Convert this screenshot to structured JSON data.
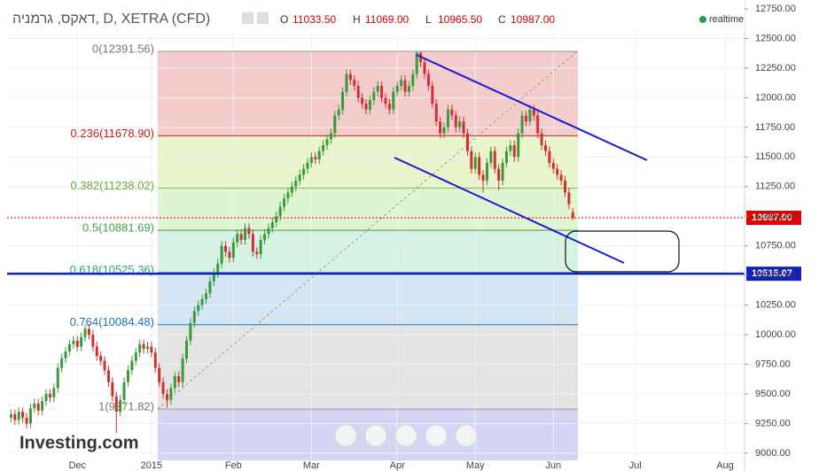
{
  "chart_data": {
    "type": "candlestick",
    "title": "דאקס, גרמניה, D, XETRA (CFD)",
    "ohlc": [
      [
        "O",
        "11033.50"
      ],
      [
        "H",
        "11069.00"
      ],
      [
        "L",
        "10965.50"
      ],
      [
        "C",
        "10987.00"
      ]
    ],
    "status": "realtime",
    "brand": "Investing.com",
    "up_color": "#3a9a3a",
    "down_color": "#d03030",
    "grid": true,
    "xlim": [
      -1,
      188
    ],
    "xticks": [
      {
        "value": 17,
        "label": "Dec"
      },
      {
        "value": 36,
        "label": "2015"
      },
      {
        "value": 57,
        "label": "Feb"
      },
      {
        "value": 77,
        "label": "Mar"
      },
      {
        "value": 99,
        "label": "Apr"
      },
      {
        "value": 119,
        "label": "May"
      },
      {
        "value": 139,
        "label": "Jun"
      },
      {
        "value": 160,
        "label": "Jul"
      },
      {
        "value": 183,
        "label": "Aug"
      }
    ],
    "ylim": [
      8850,
      12825
    ],
    "yticks": [
      {
        "value": 9000,
        "label": "9000.00"
      },
      {
        "value": 9250,
        "label": "9250.00"
      },
      {
        "value": 9500,
        "label": "9500.00"
      },
      {
        "value": 9750,
        "label": "9750.00"
      },
      {
        "value": 10000,
        "label": "10000.00"
      },
      {
        "value": 10250,
        "label": "10250.00"
      },
      {
        "value": 10500,
        "label": "10500.00"
      },
      {
        "value": 10750,
        "label": "10750.00"
      },
      {
        "value": 11000,
        "label": "11000.00"
      },
      {
        "value": 11250,
        "label": "11250.00"
      },
      {
        "value": 11500,
        "label": "11500.00"
      },
      {
        "value": 11750,
        "label": "11750.00"
      },
      {
        "value": 12000,
        "label": "12000.00"
      },
      {
        "value": 12250,
        "label": "12250.00"
      },
      {
        "value": 12500,
        "label": "12500.00"
      },
      {
        "value": 12750,
        "label": "12750.00"
      }
    ],
    "fib_levels": [
      {
        "value": 12391.56,
        "label": "0(12391.56)",
        "color": "#999999",
        "text_color": "#777777",
        "fill": "#f4cccc"
      },
      {
        "value": 11678.9,
        "label": "0.236(11678.90)",
        "color": "#c02020",
        "text_color": "#c02020",
        "fill": "#eaf4cc"
      },
      {
        "value": 11238.02,
        "label": "0.382(11238.02)",
        "color": "#7cc040",
        "text_color": "#6aaa30",
        "fill": "#dff4d0"
      },
      {
        "value": 10881.69,
        "label": "0.5(10881.69)",
        "color": "#40a040",
        "text_color": "#40a040",
        "fill": "#d6f2e4"
      },
      {
        "value": 10525.36,
        "label": "0.618(10525.36)",
        "color": "#30a090",
        "text_color": "#30a090",
        "fill": "#d4e6f4"
      },
      {
        "value": 10084.48,
        "label": "0.764(10084.48)",
        "color": "#2070c0",
        "text_color": "#2070c0",
        "fill": "#e4e4e4"
      },
      {
        "value": 9371.82,
        "label": "1(9371.82)",
        "color": "#999999",
        "text_color": "#777777",
        "fill": "#d4d4f4"
      }
    ],
    "price_lines": [
      {
        "value": 10987,
        "label": "10987.00",
        "color": "#e00000",
        "style": "dotted"
      },
      {
        "value": 10515.07,
        "label": "10515.07",
        "color": "#1020c0",
        "style": "solid"
      }
    ],
    "candles": [
      [
        9300,
        9370,
        9260,
        9330
      ],
      [
        9330,
        9370,
        9240,
        9280
      ],
      [
        9280,
        9390,
        9240,
        9350
      ],
      [
        9350,
        9390,
        9260,
        9300
      ],
      [
        9300,
        9340,
        9210,
        9250
      ],
      [
        9250,
        9420,
        9210,
        9380
      ],
      [
        9380,
        9460,
        9340,
        9420
      ],
      [
        9420,
        9460,
        9320,
        9360
      ],
      [
        9360,
        9480,
        9320,
        9440
      ],
      [
        9440,
        9540,
        9400,
        9500
      ],
      [
        9500,
        9540,
        9430,
        9470
      ],
      [
        9470,
        9590,
        9430,
        9550
      ],
      [
        9550,
        9760,
        9510,
        9720
      ],
      [
        9720,
        9840,
        9680,
        9800
      ],
      [
        9800,
        9900,
        9760,
        9860
      ],
      [
        9860,
        9960,
        9820,
        9920
      ],
      [
        9920,
        9990,
        9880,
        9950
      ],
      [
        9950,
        9990,
        9860,
        9900
      ],
      [
        9900,
        10020,
        9860,
        9980
      ],
      [
        9980,
        10090,
        9940,
        10050
      ],
      [
        10050,
        10090,
        9960,
        10000
      ],
      [
        10000,
        10040,
        9860,
        9900
      ],
      [
        9900,
        9940,
        9780,
        9820
      ],
      [
        9820,
        9860,
        9740,
        9780
      ],
      [
        9780,
        9820,
        9660,
        9700
      ],
      [
        9700,
        9740,
        9560,
        9600
      ],
      [
        9600,
        9640,
        9440,
        9480
      ],
      [
        9480,
        9520,
        9170,
        9350
      ],
      [
        9350,
        9490,
        9310,
        9450
      ],
      [
        9450,
        9640,
        9410,
        9600
      ],
      [
        9600,
        9740,
        9560,
        9700
      ],
      [
        9700,
        9820,
        9660,
        9780
      ],
      [
        9780,
        9890,
        9740,
        9850
      ],
      [
        9850,
        9960,
        9810,
        9920
      ],
      [
        9920,
        9960,
        9840,
        9880
      ],
      [
        9880,
        9940,
        9840,
        9900
      ],
      [
        9900,
        9940,
        9810,
        9850
      ],
      [
        9850,
        9890,
        9680,
        9720
      ],
      [
        9720,
        9760,
        9560,
        9600
      ],
      [
        9600,
        9640,
        9460,
        9500
      ],
      [
        9500,
        9540,
        9380,
        9450
      ],
      [
        9450,
        9590,
        9410,
        9550
      ],
      [
        9550,
        9690,
        9510,
        9650
      ],
      [
        9650,
        9690,
        9560,
        9600
      ],
      [
        9600,
        9840,
        9560,
        9800
      ],
      [
        9800,
        9990,
        9760,
        9950
      ],
      [
        9950,
        10140,
        9910,
        10100
      ],
      [
        10100,
        10240,
        10060,
        10200
      ],
      [
        10200,
        10290,
        10160,
        10250
      ],
      [
        10250,
        10340,
        10210,
        10300
      ],
      [
        10300,
        10390,
        10260,
        10350
      ],
      [
        10350,
        10490,
        10310,
        10450
      ],
      [
        10450,
        10560,
        10410,
        10520
      ],
      [
        10520,
        10640,
        10480,
        10600
      ],
      [
        10600,
        10790,
        10560,
        10750
      ],
      [
        10750,
        10790,
        10660,
        10700
      ],
      [
        10700,
        10740,
        10610,
        10650
      ],
      [
        10650,
        10820,
        10610,
        10780
      ],
      [
        10780,
        10890,
        10740,
        10850
      ],
      [
        10850,
        10890,
        10760,
        10800
      ],
      [
        10800,
        10940,
        10760,
        10900
      ],
      [
        10900,
        10940,
        10810,
        10850
      ],
      [
        10850,
        10890,
        10660,
        10700
      ],
      [
        10700,
        10740,
        10640,
        10680
      ],
      [
        10680,
        10840,
        10640,
        10800
      ],
      [
        10800,
        10890,
        10760,
        10850
      ],
      [
        10850,
        10940,
        10810,
        10900
      ],
      [
        10900,
        10990,
        10860,
        10950
      ],
      [
        10950,
        11040,
        10910,
        11000
      ],
      [
        11000,
        11120,
        10960,
        11080
      ],
      [
        11080,
        11190,
        11040,
        11150
      ],
      [
        11150,
        11240,
        11110,
        11200
      ],
      [
        11200,
        11290,
        11160,
        11250
      ],
      [
        11250,
        11340,
        11210,
        11300
      ],
      [
        11300,
        11390,
        11260,
        11350
      ],
      [
        11350,
        11440,
        11310,
        11400
      ],
      [
        11400,
        11490,
        11360,
        11450
      ],
      [
        11450,
        11540,
        11410,
        11500
      ],
      [
        11500,
        11540,
        11440,
        11480
      ],
      [
        11480,
        11590,
        11440,
        11550
      ],
      [
        11550,
        11640,
        11510,
        11600
      ],
      [
        11600,
        11690,
        11560,
        11650
      ],
      [
        11650,
        11740,
        11610,
        11700
      ],
      [
        11700,
        11890,
        11660,
        11850
      ],
      [
        11850,
        11940,
        11810,
        11900
      ],
      [
        11900,
        12090,
        11860,
        12050
      ],
      [
        12050,
        12240,
        12010,
        12200
      ],
      [
        12200,
        12240,
        12110,
        12150
      ],
      [
        12150,
        12190,
        12060,
        12100
      ],
      [
        12100,
        12140,
        11960,
        12000
      ],
      [
        12000,
        12040,
        11910,
        11950
      ],
      [
        11950,
        11990,
        11860,
        11900
      ],
      [
        11900,
        12020,
        11860,
        11980
      ],
      [
        11980,
        12090,
        11940,
        12050
      ],
      [
        12050,
        12140,
        12010,
        12100
      ],
      [
        12100,
        12140,
        11960,
        12000
      ],
      [
        12000,
        12040,
        11910,
        11950
      ],
      [
        11950,
        11990,
        11860,
        11900
      ],
      [
        11900,
        12090,
        11860,
        12050
      ],
      [
        12050,
        12140,
        12010,
        12100
      ],
      [
        12100,
        12190,
        12060,
        12150
      ],
      [
        12150,
        12190,
        12010,
        12050
      ],
      [
        12050,
        12140,
        12010,
        12100
      ],
      [
        12100,
        12240,
        12060,
        12200
      ],
      [
        12200,
        12392,
        12160,
        12380
      ],
      [
        12380,
        12392,
        12260,
        12300
      ],
      [
        12300,
        12340,
        12160,
        12200
      ],
      [
        12200,
        12240,
        12060,
        12100
      ],
      [
        12100,
        12140,
        11910,
        11950
      ],
      [
        11950,
        11990,
        11760,
        11800
      ],
      [
        11800,
        11840,
        11660,
        11700
      ],
      [
        11700,
        11790,
        11660,
        11750
      ],
      [
        11750,
        11940,
        11710,
        11900
      ],
      [
        11900,
        11940,
        11810,
        11850
      ],
      [
        11850,
        11890,
        11710,
        11750
      ],
      [
        11750,
        11840,
        11710,
        11800
      ],
      [
        11800,
        11840,
        11660,
        11700
      ],
      [
        11700,
        11740,
        11510,
        11550
      ],
      [
        11550,
        11590,
        11360,
        11400
      ],
      [
        11400,
        11540,
        11360,
        11500
      ],
      [
        11500,
        11540,
        11310,
        11350
      ],
      [
        11350,
        11390,
        11200,
        11300
      ],
      [
        11300,
        11490,
        11260,
        11450
      ],
      [
        11450,
        11590,
        11410,
        11550
      ],
      [
        11550,
        11590,
        11360,
        11400
      ],
      [
        11400,
        11440,
        11220,
        11300
      ],
      [
        11300,
        11490,
        11260,
        11450
      ],
      [
        11450,
        11590,
        11410,
        11550
      ],
      [
        11550,
        11640,
        11510,
        11600
      ],
      [
        11600,
        11640,
        11460,
        11500
      ],
      [
        11500,
        11740,
        11460,
        11700
      ],
      [
        11700,
        11890,
        11660,
        11850
      ],
      [
        11850,
        11890,
        11760,
        11800
      ],
      [
        11800,
        11940,
        11760,
        11900
      ],
      [
        11900,
        11940,
        11810,
        11850
      ],
      [
        11850,
        11890,
        11660,
        11700
      ],
      [
        11700,
        11740,
        11560,
        11600
      ],
      [
        11600,
        11640,
        11510,
        11550
      ],
      [
        11550,
        11590,
        11410,
        11450
      ],
      [
        11450,
        11490,
        11360,
        11400
      ],
      [
        11400,
        11440,
        11310,
        11350
      ],
      [
        11350,
        11390,
        11260,
        11300
      ],
      [
        11300,
        11340,
        11160,
        11200
      ],
      [
        11200,
        11240,
        11060,
        11100
      ],
      [
        11033.5,
        11069,
        10965.5,
        10987
      ]
    ]
  }
}
